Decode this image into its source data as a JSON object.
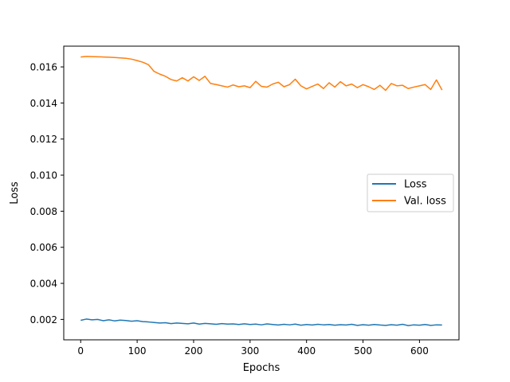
{
  "chart_data": {
    "type": "line",
    "title": "",
    "xlabel": "Epochs",
    "ylabel": "Loss",
    "xlim": [
      -30,
      670
    ],
    "ylim": [
      0.00087,
      0.01715
    ],
    "xticks": [
      0,
      100,
      200,
      300,
      400,
      500,
      600
    ],
    "yticks": [
      0.002,
      0.004,
      0.006,
      0.008,
      0.01,
      0.012,
      0.014,
      0.016
    ],
    "ytick_labels": [
      "0.002",
      "0.004",
      "0.006",
      "0.008",
      "0.010",
      "0.012",
      "0.014",
      "0.016"
    ],
    "grid": false,
    "legend_position": "center-right",
    "series": [
      {
        "name": "Loss",
        "color": "#1f77b4",
        "x": [
          0,
          10,
          20,
          30,
          40,
          50,
          60,
          70,
          80,
          90,
          100,
          110,
          120,
          130,
          140,
          150,
          160,
          170,
          180,
          190,
          200,
          210,
          220,
          230,
          240,
          250,
          260,
          270,
          280,
          290,
          300,
          310,
          320,
          330,
          340,
          350,
          360,
          370,
          380,
          390,
          400,
          410,
          420,
          430,
          440,
          450,
          460,
          470,
          480,
          490,
          500,
          510,
          520,
          530,
          540,
          550,
          560,
          570,
          580,
          590,
          600,
          610,
          620,
          630,
          640
        ],
        "y": [
          0.00195,
          0.00202,
          0.00198,
          0.002,
          0.00193,
          0.00198,
          0.00192,
          0.00196,
          0.00194,
          0.0019,
          0.00193,
          0.00188,
          0.00186,
          0.00183,
          0.0018,
          0.00182,
          0.00177,
          0.0018,
          0.00178,
          0.00176,
          0.0018,
          0.00174,
          0.00178,
          0.00176,
          0.00173,
          0.00177,
          0.00174,
          0.00175,
          0.00172,
          0.00176,
          0.00172,
          0.00174,
          0.0017,
          0.00175,
          0.00172,
          0.00169,
          0.00173,
          0.0017,
          0.00174,
          0.00168,
          0.00172,
          0.00169,
          0.00173,
          0.0017,
          0.00172,
          0.00168,
          0.00171,
          0.00169,
          0.00173,
          0.00167,
          0.00171,
          0.00168,
          0.00172,
          0.00169,
          0.00167,
          0.00171,
          0.00168,
          0.00173,
          0.00166,
          0.0017,
          0.00168,
          0.00172,
          0.00167,
          0.0017,
          0.00169
        ]
      },
      {
        "name": "Val. loss",
        "color": "#ff7f0e",
        "x": [
          0,
          10,
          20,
          30,
          40,
          50,
          60,
          70,
          80,
          90,
          100,
          110,
          120,
          130,
          140,
          150,
          160,
          170,
          180,
          190,
          200,
          210,
          220,
          230,
          240,
          250,
          260,
          270,
          280,
          290,
          300,
          310,
          320,
          330,
          340,
          350,
          360,
          370,
          380,
          390,
          400,
          410,
          420,
          430,
          440,
          450,
          460,
          470,
          480,
          490,
          500,
          510,
          520,
          530,
          540,
          550,
          560,
          570,
          580,
          590,
          600,
          610,
          620,
          630,
          640
        ],
        "y": [
          0.01655,
          0.01658,
          0.01657,
          0.01656,
          0.01655,
          0.01654,
          0.01652,
          0.0165,
          0.01648,
          0.01643,
          0.01635,
          0.01626,
          0.01612,
          0.01575,
          0.0156,
          0.01548,
          0.0153,
          0.01522,
          0.0154,
          0.01522,
          0.01545,
          0.01525,
          0.01548,
          0.01508,
          0.01502,
          0.01495,
          0.01488,
          0.015,
          0.0149,
          0.01495,
          0.01485,
          0.0152,
          0.01492,
          0.01488,
          0.01505,
          0.01515,
          0.0149,
          0.01502,
          0.01532,
          0.01495,
          0.01478,
          0.01492,
          0.01505,
          0.0148,
          0.01512,
          0.01488,
          0.01518,
          0.01495,
          0.01505,
          0.01485,
          0.01502,
          0.0149,
          0.01475,
          0.01498,
          0.0147,
          0.01508,
          0.01495,
          0.01498,
          0.0148,
          0.01488,
          0.01495,
          0.01502,
          0.01475,
          0.01528,
          0.01472
        ]
      }
    ]
  }
}
